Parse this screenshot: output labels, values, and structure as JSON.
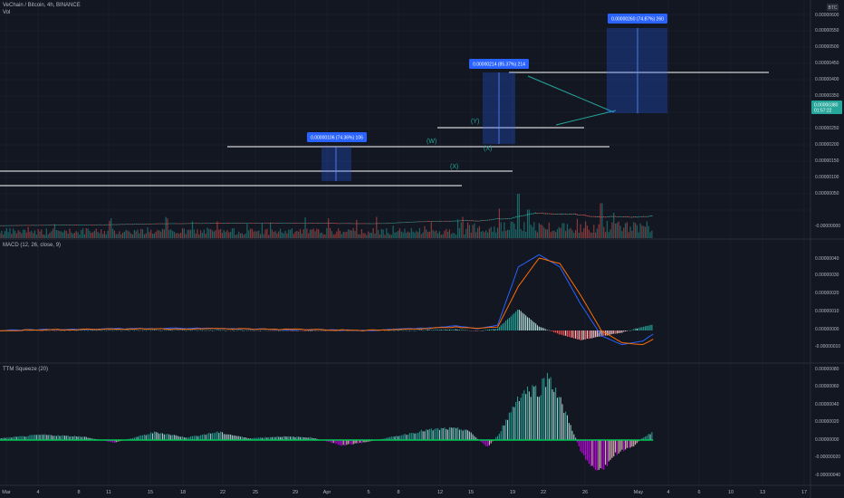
{
  "colors": {
    "background": "#131722",
    "grid": "#1f2433",
    "separator": "#2a2e39",
    "up": "#26a69a",
    "down": "#ef5350",
    "macd_line": "#2962ff",
    "signal_line": "#ff6d00",
    "hist_pos_strong": "#26a69a",
    "hist_pos_weak": "#b2dfdb",
    "hist_neg_strong": "#ff5252",
    "hist_neg_weak": "#ffcdd2",
    "sqz_pos_strong": "#00c853",
    "sqz_neg_strong": "#d500f9",
    "level_line": "#ffffff",
    "measure_box": "#2962ff",
    "trendline": "#26a69a",
    "wave_label": "#26a69a",
    "price_tag": "#26a69a"
  },
  "header": {
    "symbol_line": "VeChain / Bitcoin, 4h, BINANCE",
    "volume_label": "Vol",
    "macd_label": "MACD (12, 26, close, 9)",
    "ttm_label": "TTM Squeeze (20)"
  },
  "price_axis": {
    "currency": "BTC",
    "labels": [
      "0.00000600",
      "0.00000550",
      "0.00000500",
      "0.00000450",
      "0.00000400",
      "0.00000350",
      "0.00000300",
      "0.00000250",
      "0.00000200",
      "0.00000150",
      "0.00000100",
      "0.00000050",
      "-0.00000000"
    ],
    "last_price": "0.00000380",
    "countdown": "01:57:22"
  },
  "macd_axis": {
    "labels": [
      "0.00000040",
      "0.00000030",
      "0.00000020",
      "0.00000010",
      "0.00000000",
      "-0.00000010"
    ]
  },
  "ttm_axis": {
    "labels": [
      "0.00000080",
      "0.00000060",
      "0.00000040",
      "0.00000020",
      "0.00000000",
      "-0.00000020",
      "-0.00000040"
    ]
  },
  "time_axis": {
    "labels": [
      "Mar",
      "4",
      "8",
      "11",
      "15",
      "18",
      "22",
      "25",
      "29",
      "Apr",
      "5",
      "8",
      "12",
      "15",
      "19",
      "22",
      "26",
      "May",
      "4",
      "6",
      "10",
      "13",
      "17"
    ]
  },
  "measure_labels": {
    "box1": "0.00000106 (74.36%) 106",
    "box2": "0.00000214 (85.37%) 214",
    "box3": "0.00000260 (74.87%) 260"
  },
  "wave_labels": {
    "w": "(W)",
    "x1": "(X)",
    "y": "(Y)",
    "x2": "(X)"
  },
  "chart_data": [
    {
      "type": "candlestick",
      "title": "VeChain / Bitcoin, 4h, BINANCE",
      "unit": "BTC",
      "ylim": [
        0.0,
        6.5e-06
      ],
      "x_range_days": [
        0,
        78
      ],
      "price_path": [
        {
          "day": 0,
          "price": 8.5e-08
        },
        {
          "day": 5,
          "price": 1e-07
        },
        {
          "day": 10,
          "price": 1.1e-07
        },
        {
          "day": 15,
          "price": 1.4e-07
        },
        {
          "day": 20,
          "price": 1.55e-07
        },
        {
          "day": 25,
          "price": 1.6e-07
        },
        {
          "day": 30,
          "price": 1.6e-07
        },
        {
          "day": 33,
          "price": 1.5e-07
        },
        {
          "day": 35,
          "price": 1.45e-07
        },
        {
          "day": 37,
          "price": 1.5e-07
        },
        {
          "day": 40,
          "price": 2e-07
        },
        {
          "day": 43,
          "price": 2.2e-07
        },
        {
          "day": 45,
          "price": 2.4e-07
        },
        {
          "day": 46,
          "price": 2.2e-07
        },
        {
          "day": 47,
          "price": 2.5e-07
        },
        {
          "day": 48,
          "price": 2.9e-07
        },
        {
          "day": 49,
          "price": 2.85e-07
        },
        {
          "day": 50,
          "price": 3.6e-07
        },
        {
          "day": 51,
          "price": 4.3e-07
        },
        {
          "day": 52,
          "price": 4.7e-07
        },
        {
          "day": 53,
          "price": 4.4e-07
        },
        {
          "day": 54,
          "price": 4.3e-07
        },
        {
          "day": 55,
          "price": 4.4e-07
        },
        {
          "day": 56,
          "price": 4.1e-07
        },
        {
          "day": 57,
          "price": 3.6e-07
        },
        {
          "day": 58,
          "price": 3.4e-07
        },
        {
          "day": 59,
          "price": 3.6e-07
        },
        {
          "day": 60,
          "price": 3.5e-07
        },
        {
          "day": 61,
          "price": 3.4e-07
        },
        {
          "day": 62,
          "price": 3.55e-07
        },
        {
          "day": 63,
          "price": 3.8e-07
        }
      ],
      "volume_scale": [
        0,
        1e-07
      ],
      "volume_spikes": [
        {
          "day": 50,
          "volume": 1.4e-07
        },
        {
          "day": 51,
          "volume": 9e-08
        },
        {
          "day": 58,
          "volume": 1.1e-07
        }
      ]
    },
    {
      "type": "line",
      "title": "MACD (12, 26, close, 9)",
      "ylim": [
        -1.3e-07,
        4.6e-07
      ],
      "series": [
        {
          "name": "MACD",
          "points": [
            {
              "day": 0,
              "v": 0.0
            },
            {
              "day": 10,
              "v": 1e-08
            },
            {
              "day": 20,
              "v": 1.2e-08
            },
            {
              "day": 30,
              "v": 5e-09
            },
            {
              "day": 35,
              "v": 0.0
            },
            {
              "day": 40,
              "v": 1e-08
            },
            {
              "day": 44,
              "v": 2.5e-08
            },
            {
              "day": 46,
              "v": 1e-08
            },
            {
              "day": 48,
              "v": 3e-08
            },
            {
              "day": 50,
              "v": 3.6e-07
            },
            {
              "day": 52,
              "v": 4.3e-07
            },
            {
              "day": 54,
              "v": 3.6e-07
            },
            {
              "day": 56,
              "v": 1.5e-07
            },
            {
              "day": 58,
              "v": -3e-08
            },
            {
              "day": 60,
              "v": -8e-08
            },
            {
              "day": 62,
              "v": -6e-08
            },
            {
              "day": 63,
              "v": -2e-08
            }
          ]
        },
        {
          "name": "Signal",
          "points": [
            {
              "day": 0,
              "v": 0.0
            },
            {
              "day": 10,
              "v": 8e-09
            },
            {
              "day": 20,
              "v": 1e-08
            },
            {
              "day": 30,
              "v": 6e-09
            },
            {
              "day": 35,
              "v": 0.0
            },
            {
              "day": 40,
              "v": 8e-09
            },
            {
              "day": 44,
              "v": 2e-08
            },
            {
              "day": 46,
              "v": 1.2e-08
            },
            {
              "day": 48,
              "v": 2e-08
            },
            {
              "day": 50,
              "v": 2.5e-07
            },
            {
              "day": 52,
              "v": 4.1e-07
            },
            {
              "day": 54,
              "v": 3.8e-07
            },
            {
              "day": 56,
              "v": 2e-07
            },
            {
              "day": 58,
              "v": 0.0
            },
            {
              "day": 60,
              "v": -7e-08
            },
            {
              "day": 62,
              "v": -8e-08
            },
            {
              "day": 63,
              "v": -5e-08
            }
          ]
        }
      ]
    },
    {
      "type": "bar",
      "title": "TTM Squeeze (20)",
      "ylim": [
        -4.5e-07,
        8e-07
      ],
      "momentum": [
        {
          "day": 0,
          "v": 2e-08
        },
        {
          "day": 4,
          "v": 6e-08
        },
        {
          "day": 8,
          "v": 4e-08
        },
        {
          "day": 11,
          "v": -3e-08
        },
        {
          "day": 15,
          "v": 9e-08
        },
        {
          "day": 18,
          "v": 3e-08
        },
        {
          "day": 21,
          "v": 9e-08
        },
        {
          "day": 24,
          "v": 2e-08
        },
        {
          "day": 27,
          "v": 4e-08
        },
        {
          "day": 30,
          "v": 3e-08
        },
        {
          "day": 33,
          "v": -6e-08
        },
        {
          "day": 35,
          "v": -3e-08
        },
        {
          "day": 38,
          "v": 4e-08
        },
        {
          "day": 41,
          "v": 1.1e-07
        },
        {
          "day": 43,
          "v": 1.3e-07
        },
        {
          "day": 45,
          "v": 1.2e-07
        },
        {
          "day": 46,
          "v": 2e-08
        },
        {
          "day": 47,
          "v": -8e-08
        },
        {
          "day": 48,
          "v": 5e-08
        },
        {
          "day": 49,
          "v": 2.6e-07
        },
        {
          "day": 50,
          "v": 5e-07
        },
        {
          "day": 51,
          "v": 5.7e-07
        },
        {
          "day": 52,
          "v": 5.7e-07
        },
        {
          "day": 53,
          "v": 7.4e-07
        },
        {
          "day": 54,
          "v": 4.5e-07
        },
        {
          "day": 55,
          "v": 1.8e-07
        },
        {
          "day": 56,
          "v": -1.2e-07
        },
        {
          "day": 57,
          "v": -2.8e-07
        },
        {
          "day": 58,
          "v": -3.8e-07
        },
        {
          "day": 59,
          "v": -1.8e-07
        },
        {
          "day": 60,
          "v": -1.2e-07
        },
        {
          "day": 61,
          "v": -8e-08
        },
        {
          "day": 62,
          "v": 3e-08
        },
        {
          "day": 63,
          "v": 9e-08
        }
      ]
    }
  ]
}
